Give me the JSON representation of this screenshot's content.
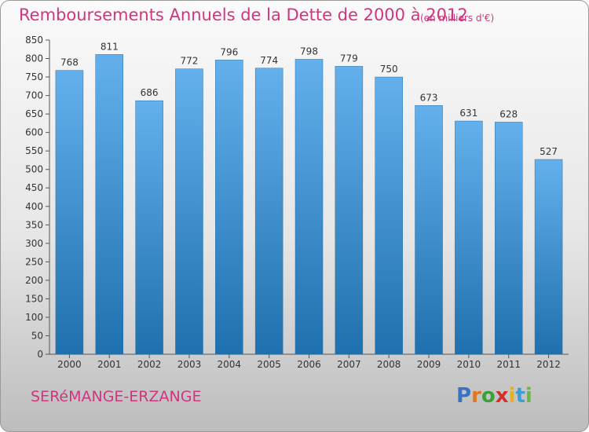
{
  "header": {
    "title": "Remboursements Annuels de la Dette de 2000 à 2012",
    "subtitle": "(en milliers d'€)"
  },
  "footer": {
    "commune": "SERéMANGE-ERZANGE",
    "logo_text": "Proxiti"
  },
  "colors": {
    "accent": "#d0357f",
    "bar_top": "#63b0ec",
    "bar_bottom": "#1f70ae"
  },
  "chart_data": {
    "type": "bar",
    "categories": [
      "2000",
      "2001",
      "2002",
      "2003",
      "2004",
      "2005",
      "2006",
      "2007",
      "2008",
      "2009",
      "2010",
      "2011",
      "2012"
    ],
    "values": [
      768,
      811,
      686,
      772,
      796,
      774,
      798,
      779,
      750,
      673,
      631,
      628,
      527
    ],
    "title": "Remboursements Annuels de la Dette de 2000 à 2012",
    "subtitle": "(en milliers d'€)",
    "xlabel": "",
    "ylabel": "",
    "ylim": [
      0,
      850
    ],
    "yticks": [
      0,
      50,
      100,
      150,
      200,
      250,
      300,
      350,
      400,
      450,
      500,
      550,
      600,
      650,
      700,
      750,
      800,
      850
    ],
    "grid": false,
    "data_labels": true
  }
}
